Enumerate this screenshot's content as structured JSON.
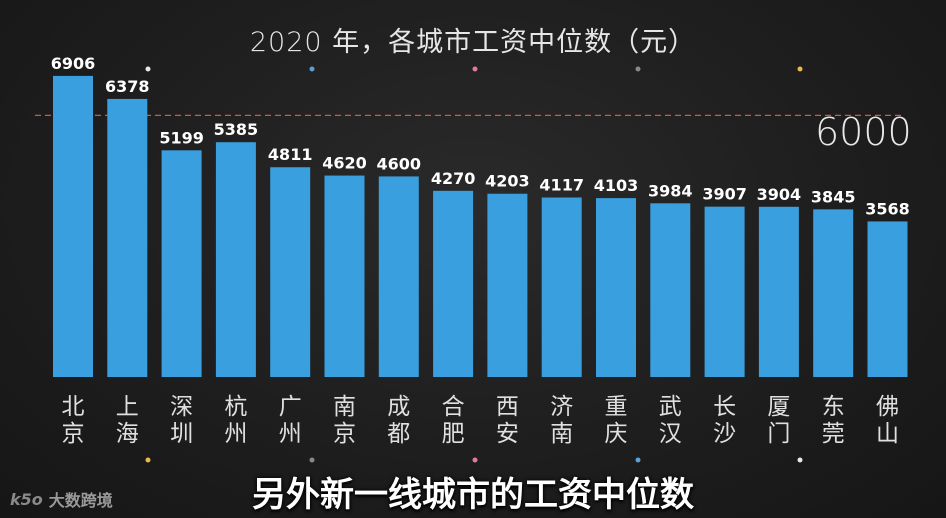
{
  "title": "2020 年，各城市工资中位数（元）",
  "subtitle": "另外新一线城市的工资中位数",
  "watermark": {
    "mark": "k5o",
    "text": "大数跨境"
  },
  "colors": {
    "bar": "#3a9fde",
    "reference_line": "#d9534f",
    "background": "#1e1e1e"
  },
  "chart_data": {
    "type": "bar",
    "title": "2020 年，各城市工资中位数（元）",
    "categories": [
      "北京",
      "上海",
      "深圳",
      "杭州",
      "广州",
      "南京",
      "成都",
      "合肥",
      "西安",
      "济南",
      "重庆",
      "武汉",
      "长沙",
      "厦门",
      "东莞",
      "佛山"
    ],
    "values": [
      6906,
      6378,
      5199,
      5385,
      4811,
      4620,
      4600,
      4270,
      4203,
      4117,
      4103,
      3984,
      3907,
      3904,
      3845,
      3568
    ],
    "reference_line": {
      "value": 6000,
      "label": "6000",
      "style": "dashed"
    },
    "ylim": [
      0,
      7500
    ],
    "grid": false,
    "data_labels": true,
    "xlabel": "",
    "ylabel": ""
  },
  "dots": [
    {
      "color": "#e8e8e8"
    },
    {
      "color": "#5a9fd6"
    },
    {
      "color": "#e07a9a"
    },
    {
      "color": "#888888"
    },
    {
      "color": "#e8b84a"
    }
  ],
  "bottom_dots": [
    {
      "color": "#e8b84a"
    },
    {
      "color": "#888888"
    },
    {
      "color": "#e07a9a"
    },
    {
      "color": "#5a9fd6"
    },
    {
      "color": "#e8e8e8"
    }
  ]
}
